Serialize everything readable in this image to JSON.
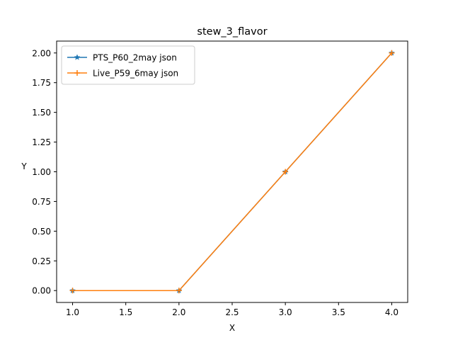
{
  "chart_data": {
    "type": "line",
    "title": "stew_3_flavor",
    "xlabel": "X",
    "ylabel": "Y",
    "xlim": [
      0.85,
      4.15
    ],
    "ylim": [
      -0.1,
      2.1
    ],
    "xticks": [
      "1.0",
      "1.5",
      "2.0",
      "2.5",
      "3.0",
      "3.5",
      "4.0"
    ],
    "yticks": [
      "0.00",
      "0.25",
      "0.50",
      "0.75",
      "1.00",
      "1.25",
      "1.50",
      "1.75",
      "2.00"
    ],
    "grid": false,
    "legend_position": "top-left",
    "series": [
      {
        "name": "PTS_P60_2may json",
        "x": [
          1,
          2,
          3,
          4
        ],
        "y": [
          0,
          0,
          1,
          2
        ],
        "color": "#1f77b4",
        "marker": "star"
      },
      {
        "name": "Live_P59_6may json",
        "x": [
          1,
          2,
          3,
          4
        ],
        "y": [
          0,
          0,
          1,
          2
        ],
        "color": "#ff7f0e",
        "marker": "plus"
      }
    ]
  }
}
